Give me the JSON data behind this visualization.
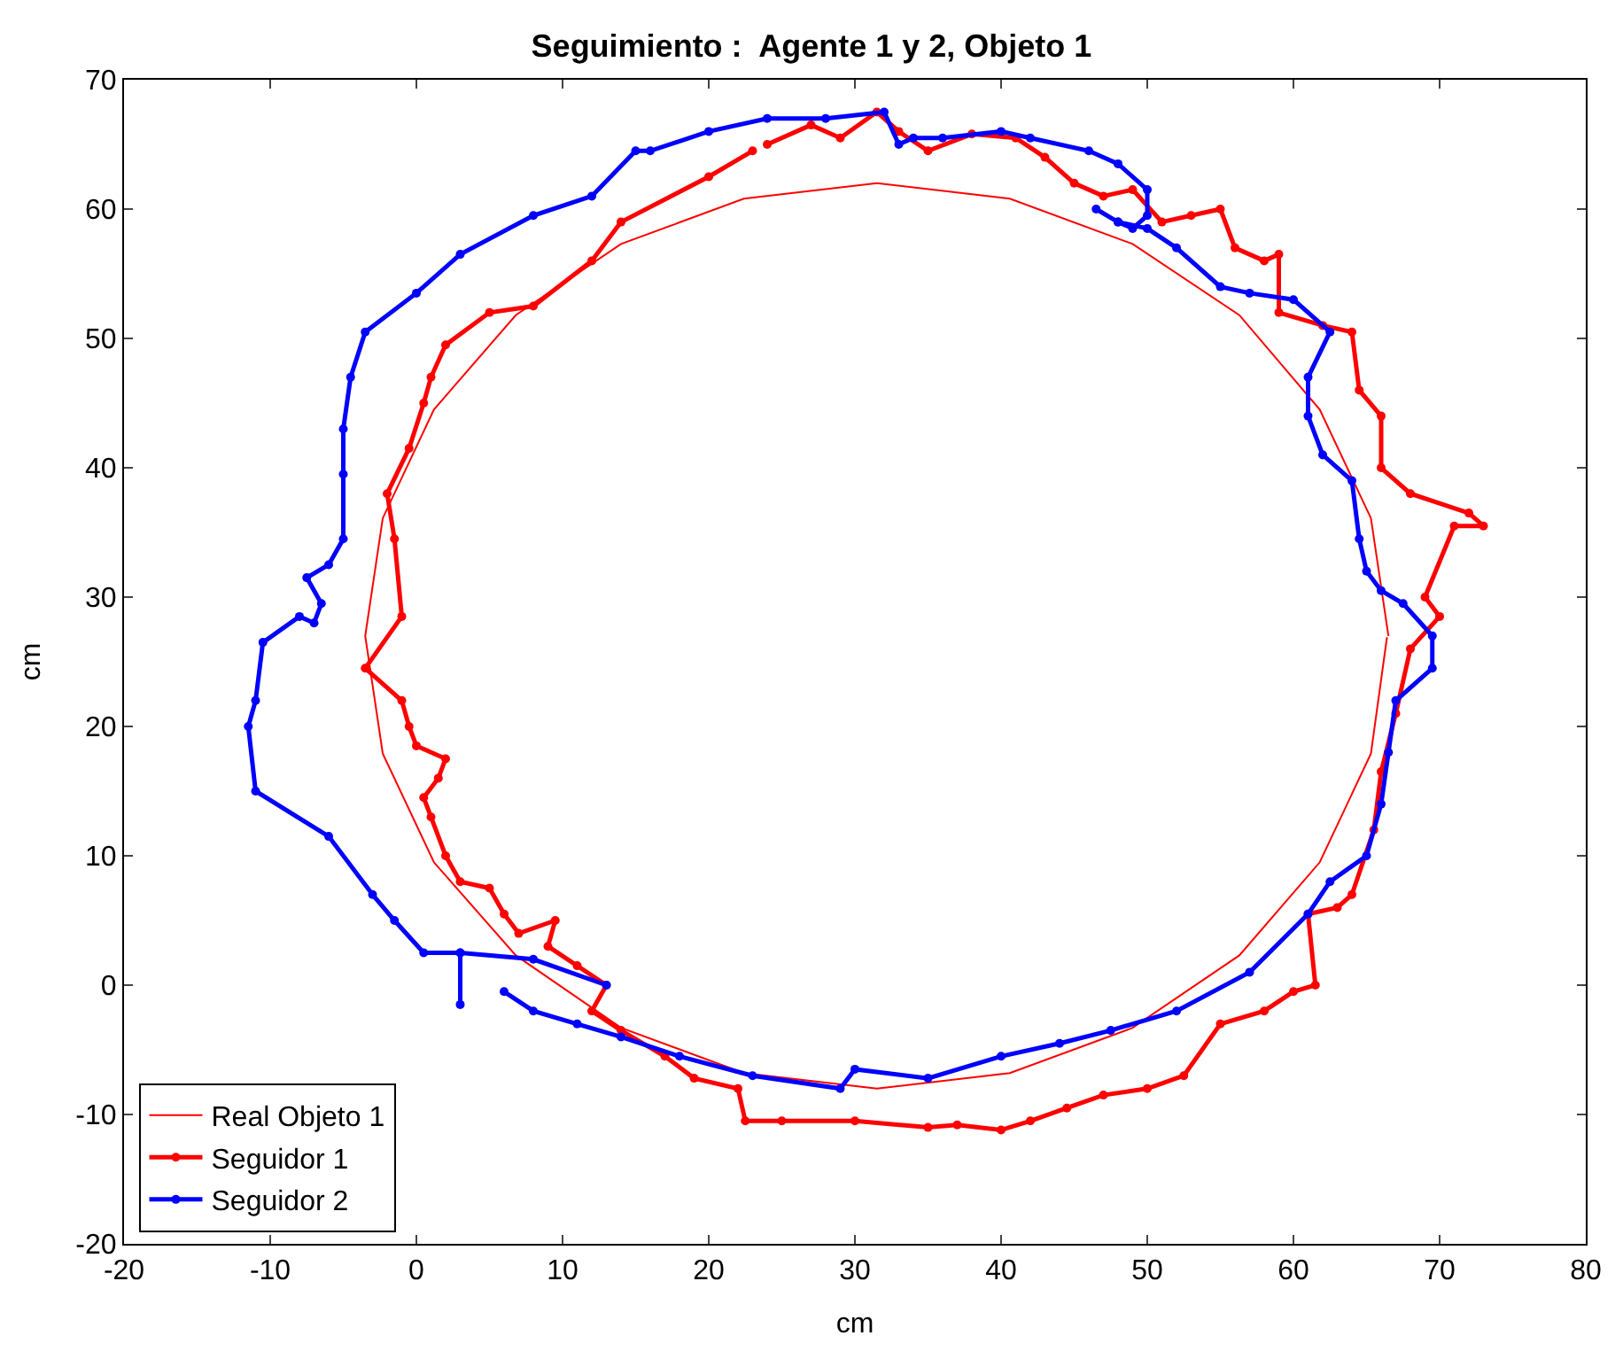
{
  "chart_data": {
    "type": "line",
    "title": "Seguimiento :  Agente 1 y 2, Objeto 1",
    "xlabel": "cm",
    "ylabel": "cm",
    "xlim": [
      -20,
      80
    ],
    "ylim": [
      -20,
      70
    ],
    "xticks": [
      -20,
      -10,
      0,
      10,
      20,
      30,
      40,
      50,
      60,
      70,
      80
    ],
    "yticks": [
      -20,
      -10,
      0,
      10,
      20,
      30,
      40,
      50,
      60,
      70
    ],
    "legend": "bottom left",
    "series": [
      {
        "name": "Real Objeto 1",
        "color": "#ff0000",
        "marker": "none",
        "x": [
          66.5,
          65.3,
          61.8,
          56.3,
          49,
          40.6,
          31.5,
          22.4,
          14,
          6.8,
          1.2,
          -2.3,
          -3.5,
          -2.3,
          1.2,
          6.8,
          14,
          22.4,
          31.5,
          40.6,
          49,
          56.3,
          61.8,
          65.3,
          66.4
        ],
        "values": [
          27,
          36.1,
          44.5,
          51.8,
          57.3,
          60.8,
          62,
          60.8,
          57.3,
          51.8,
          44.5,
          36.1,
          27,
          17.9,
          9.5,
          2.3,
          -3.3,
          -6.8,
          -8,
          -6.8,
          -3.3,
          2.3,
          9.5,
          17.9,
          26.9
        ]
      },
      {
        "name": "Seguidor 1",
        "color": "#ff0000",
        "marker": "circle",
        "x": [
          24,
          27,
          29,
          31.5,
          33,
          35,
          38,
          41,
          43,
          45,
          47,
          49,
          51,
          53,
          55,
          56,
          58,
          59,
          59,
          62,
          64,
          64.5,
          66,
          66,
          68,
          72,
          73,
          71,
          69,
          70,
          68,
          67,
          66,
          65.5,
          64,
          63,
          61,
          61.5,
          60,
          58,
          55,
          52.5,
          50,
          47,
          44.5,
          42,
          40,
          37,
          35,
          30,
          25,
          22.5,
          22,
          19,
          17,
          14,
          12,
          13,
          11,
          9,
          9.5,
          7,
          6,
          5,
          3,
          2,
          1,
          0.5,
          1.5,
          2,
          0,
          -0.5,
          -1,
          -3.5,
          -1,
          -1.5,
          -2,
          -0.5,
          0.5,
          1,
          2,
          5,
          8,
          12,
          14,
          20,
          23
        ],
        "values": [
          65,
          66.5,
          65.5,
          67.5,
          66,
          64.5,
          65.8,
          65.5,
          64,
          62,
          61,
          61.5,
          59,
          59.5,
          60,
          57,
          56,
          56.5,
          52,
          51,
          50.5,
          46,
          44,
          40,
          38,
          36.5,
          35.5,
          35.5,
          30,
          28.5,
          26,
          21,
          16.5,
          12,
          7,
          6,
          5.5,
          0,
          -0.5,
          -2,
          -3,
          -7,
          -8,
          -8.5,
          -9.5,
          -10.5,
          -11.2,
          -10.8,
          -11,
          -10.5,
          -10.5,
          -10.5,
          -8,
          -7.2,
          -5.5,
          -3.5,
          -2,
          0,
          1.5,
          3,
          5,
          4,
          5.5,
          7.5,
          8,
          10,
          13,
          14.5,
          16,
          17.5,
          18.5,
          20,
          22,
          24.5,
          28.5,
          34.5,
          38,
          41.5,
          45,
          47,
          49.5,
          52,
          52.5,
          56,
          59,
          62.5,
          64.5
        ]
      },
      {
        "name": "Seguidor 2",
        "color": "#0000ff",
        "marker": "circle",
        "x": [
          6,
          8,
          11,
          14,
          18,
          23,
          29,
          30,
          35,
          40,
          44,
          47.5,
          52,
          57,
          61,
          62.5,
          65,
          66,
          66.5,
          67,
          69.5,
          69.5,
          67.5,
          66,
          65,
          64.5,
          64,
          62,
          61,
          61,
          62.5,
          60,
          57,
          55,
          52,
          50,
          48,
          46.5,
          48,
          49,
          50,
          50,
          48,
          46,
          42,
          40,
          36,
          34,
          33,
          32,
          28,
          24,
          20,
          16,
          15,
          12,
          8,
          3,
          0,
          -3.5,
          -4.5,
          -5,
          -5,
          -5,
          -6,
          -7.5,
          -6.5,
          -7,
          -8,
          -10.5,
          -11,
          -11.5,
          -11,
          -6,
          -3,
          -1.5,
          0.5,
          3,
          3,
          3,
          8,
          13
        ],
        "values": [
          -0.5,
          -2,
          -3,
          -4,
          -5.5,
          -7,
          -8,
          -6.5,
          -7.2,
          -5.5,
          -4.5,
          -3.5,
          -2,
          1,
          5.5,
          8,
          10,
          14,
          18,
          22,
          24.5,
          27,
          29.5,
          30.5,
          32,
          34.5,
          39,
          41,
          44,
          47,
          50.5,
          53,
          53.5,
          54,
          57,
          58.5,
          59,
          60,
          59,
          58.5,
          59.5,
          61.5,
          63.5,
          64.5,
          65.5,
          66,
          65.5,
          65.5,
          65,
          67.5,
          67,
          67,
          66,
          64.5,
          64.5,
          61,
          59.5,
          56.5,
          53.5,
          50.5,
          47,
          43,
          39.5,
          34.5,
          32.5,
          31.5,
          29.5,
          28,
          28.5,
          26.5,
          22,
          20,
          15,
          11.5,
          7,
          5,
          2.5,
          2.5,
          -1.5,
          2.5,
          2,
          0
        ]
      }
    ]
  }
}
